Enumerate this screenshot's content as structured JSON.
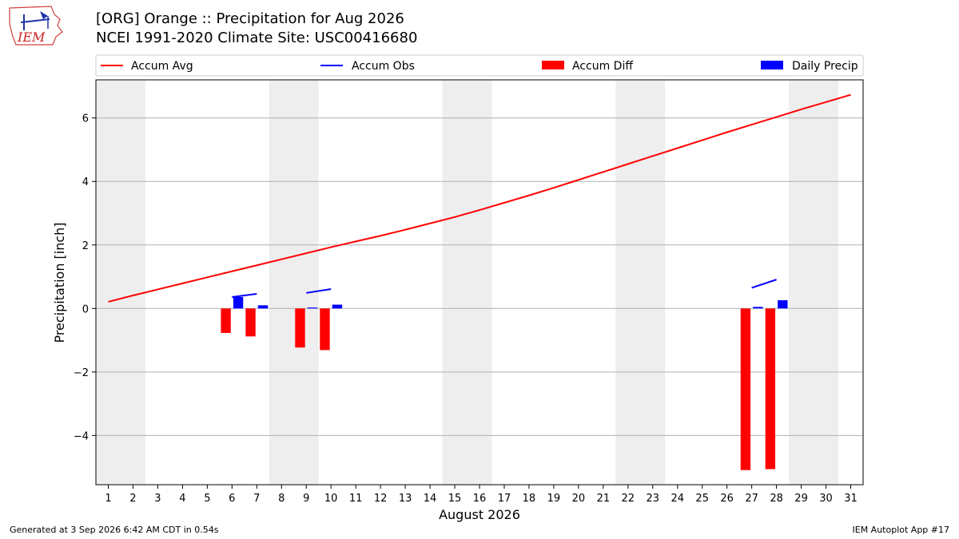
{
  "header": {
    "logo_text": "IEM",
    "title_line1": "[ORG] Orange :: Precipitation for Aug 2026",
    "title_line2": "NCEI 1991-2020 Climate Site: USC00416680"
  },
  "footer": {
    "left": "Generated at 3 Sep 2026 6:42 AM CDT in 0.54s",
    "right": "IEM Autoplot App #17"
  },
  "chart_data": {
    "type": "line+bar",
    "xlabel": "August 2026",
    "ylabel": "Precipitation [inch]",
    "xlim": [
      0.5,
      31.5
    ],
    "ylim": [
      -5.55,
      7.2
    ],
    "yticks": [
      -4,
      -2,
      0,
      2,
      4,
      6
    ],
    "ytick_labels": [
      "−4",
      "−2",
      "0",
      "2",
      "4",
      "6"
    ],
    "xticks": [
      1,
      2,
      3,
      4,
      5,
      6,
      7,
      8,
      9,
      10,
      11,
      12,
      13,
      14,
      15,
      16,
      17,
      18,
      19,
      20,
      21,
      22,
      23,
      24,
      25,
      26,
      27,
      28,
      29,
      30,
      31
    ],
    "grid": "horizontal",
    "weekend_shading": [
      [
        1,
        2
      ],
      [
        8,
        9
      ],
      [
        15,
        16
      ],
      [
        22,
        23
      ],
      [
        29,
        30
      ]
    ],
    "legend": {
      "placement": "top",
      "entries": [
        {
          "label": "Accum Avg",
          "kind": "line",
          "color": "#ff0000"
        },
        {
          "label": "Accum Obs",
          "kind": "line",
          "color": "#0000ff"
        },
        {
          "label": "Accum Diff",
          "kind": "bar",
          "color": "#ff0000"
        },
        {
          "label": "Daily Precip",
          "kind": "bar",
          "color": "#0000ff"
        }
      ]
    },
    "series": [
      {
        "name": "Accum Avg",
        "kind": "line",
        "color": "#ff0000",
        "x": [
          1,
          2,
          3,
          4,
          5,
          6,
          7,
          8,
          9,
          10,
          11,
          12,
          13,
          14,
          15,
          16,
          17,
          18,
          19,
          20,
          21,
          22,
          23,
          24,
          25,
          26,
          27,
          28,
          29,
          30,
          31
        ],
        "values": [
          0.21,
          0.41,
          0.6,
          0.79,
          0.98,
          1.17,
          1.36,
          1.55,
          1.74,
          1.93,
          2.11,
          2.29,
          2.48,
          2.68,
          2.88,
          3.1,
          3.33,
          3.56,
          3.8,
          4.05,
          4.3,
          4.55,
          4.8,
          5.05,
          5.3,
          5.55,
          5.79,
          6.03,
          6.27,
          6.5,
          6.73
        ]
      },
      {
        "name": "Accum Obs",
        "kind": "line_segments",
        "color": "#0000ff",
        "segments": [
          {
            "x": [
              6,
              7
            ],
            "values": [
              0.36,
              0.46
            ]
          },
          {
            "x": [
              9,
              10
            ],
            "values": [
              0.49,
              0.61
            ]
          },
          {
            "x": [
              27,
              28
            ],
            "values": [
              0.65,
              0.91
            ]
          }
        ]
      },
      {
        "name": "Accum Diff",
        "kind": "bar",
        "color": "#ff0000",
        "x": [
          6,
          7,
          9,
          10,
          27,
          28
        ],
        "values": [
          -0.77,
          -0.88,
          -1.23,
          -1.31,
          -5.09,
          -5.06
        ]
      },
      {
        "name": "Daily Precip",
        "kind": "bar",
        "color": "#0000ff",
        "x": [
          6,
          7,
          9,
          10,
          27,
          28
        ],
        "values": [
          0.36,
          0.1,
          0.03,
          0.12,
          0.05,
          0.26
        ]
      }
    ]
  }
}
